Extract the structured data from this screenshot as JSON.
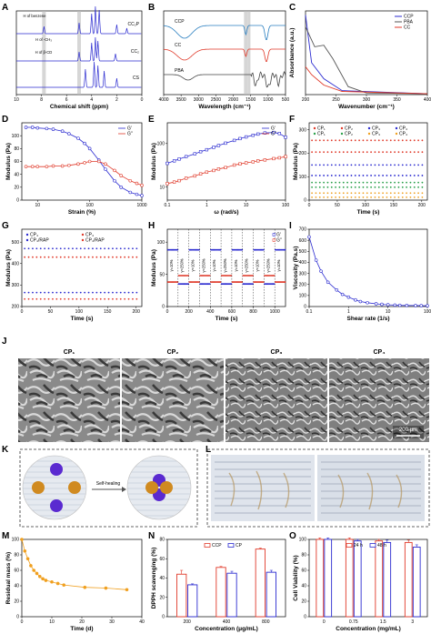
{
  "panels": [
    {
      "id": "A",
      "type": "line",
      "xlabel": "Chemical shift (ppm)",
      "ylabel": "",
      "xlim": [
        10,
        0
      ],
      "xticks": [
        10,
        8,
        6,
        4,
        2,
        0
      ],
      "series": [
        {
          "name": "CC₂P",
          "color": "#2b2bd0"
        },
        {
          "name": "CC₂",
          "color": "#2b2bd0"
        },
        {
          "name": "CS",
          "color": "#2b2bd0"
        }
      ],
      "annotations": [
        "H of benzene",
        "H of -CH₃",
        "H of β-CD"
      ]
    },
    {
      "id": "B",
      "type": "line",
      "xlabel": "Wavelength (cm⁻¹)",
      "ylabel": "",
      "xlim": [
        4000,
        500
      ],
      "xticks": [
        4000,
        3500,
        3000,
        2500,
        2000,
        1500,
        1000,
        500
      ],
      "series": [
        {
          "name": "CCP",
          "color": "#2a7fc0"
        },
        {
          "name": "CC",
          "color": "#e03a2a"
        },
        {
          "name": "PBA",
          "color": "#444444"
        }
      ]
    },
    {
      "id": "C",
      "type": "line",
      "xlabel": "Wavenumber (cm⁻¹)",
      "ylabel": "Absorbance (a.u.)",
      "xlim": [
        200,
        400
      ],
      "xticks": [
        200,
        250,
        300,
        350,
        400
      ],
      "series": [
        {
          "name": "CCP",
          "color": "#2b2bd0"
        },
        {
          "name": "PBA",
          "color": "#555555"
        },
        {
          "name": "CC",
          "color": "#e03a2a"
        }
      ]
    },
    {
      "id": "D",
      "type": "line",
      "xlabel": "Strain (%)",
      "ylabel": "Modulus (Pa)",
      "xscale": "log",
      "xlim": [
        5,
        1000
      ],
      "ylim": [
        0,
        120
      ],
      "xtick_labels": [
        "10",
        "100",
        "1000"
      ],
      "ytick_labels": [
        "0",
        "20",
        "40",
        "60",
        "80",
        "100"
      ],
      "series": [
        {
          "name": "G'",
          "color": "#2b2bd0",
          "x": [
            6,
            8,
            10,
            15,
            20,
            30,
            40,
            60,
            80,
            100,
            150,
            200,
            300,
            400,
            600,
            800,
            1000
          ],
          "y": [
            113,
            113,
            112,
            111,
            110,
            107,
            103,
            96,
            88,
            80,
            62,
            48,
            30,
            20,
            12,
            9,
            7
          ]
        },
        {
          "name": "G\"",
          "color": "#e03a2a",
          "x": [
            6,
            8,
            10,
            15,
            20,
            30,
            40,
            60,
            80,
            100,
            150,
            200,
            300,
            400,
            600,
            800,
            1000
          ],
          "y": [
            52,
            52,
            52,
            52,
            53,
            53,
            54,
            56,
            58,
            60,
            60,
            56,
            46,
            38,
            30,
            26,
            23
          ]
        }
      ]
    },
    {
      "id": "E",
      "type": "line",
      "xlabel": "ω (rad/s)",
      "ylabel": "Modulus (Pa)",
      "xscale": "log",
      "yscale": "log",
      "xlim": [
        0.1,
        100
      ],
      "ylim": [
        5,
        300
      ],
      "xtick_labels": [
        "0.1",
        "1",
        "10",
        "100"
      ],
      "ytick_labels": [
        "10",
        "100"
      ],
      "series": [
        {
          "name": "G'",
          "color": "#2b2bd0",
          "x": [
            0.1,
            0.15,
            0.2,
            0.3,
            0.5,
            0.7,
            1,
            1.5,
            2,
            3,
            5,
            7,
            10,
            15,
            20,
            30,
            50,
            70,
            100
          ],
          "y": [
            35,
            40,
            44,
            50,
            58,
            65,
            72,
            82,
            90,
            102,
            118,
            130,
            142,
            155,
            165,
            175,
            180,
            170,
            140
          ]
        },
        {
          "name": "G\"",
          "color": "#e03a2a",
          "x": [
            0.1,
            0.15,
            0.2,
            0.3,
            0.5,
            0.7,
            1,
            1.5,
            2,
            3,
            5,
            7,
            10,
            15,
            20,
            30,
            50,
            70,
            100
          ],
          "y": [
            12,
            13,
            14,
            16,
            18,
            20,
            22,
            24,
            26,
            28,
            32,
            34,
            36,
            38,
            40,
            42,
            45,
            47,
            50
          ]
        }
      ]
    },
    {
      "id": "F",
      "type": "scatter",
      "xlabel": "Time (s)",
      "ylabel": "Modulus (Pa)",
      "xlim": [
        0,
        210
      ],
      "ylim": [
        0,
        330
      ],
      "xtick_labels": [
        "0",
        "50",
        "100",
        "150",
        "200"
      ],
      "ytick_labels": [
        "0",
        "100",
        "200",
        "300"
      ],
      "legend": [
        "CP₁",
        "CP₂",
        "CP₃",
        "CP₄",
        "CP₁",
        "CP₂",
        "CP₃",
        "CP₄"
      ],
      "levels": [
        255,
        205,
        150,
        105,
        75,
        55,
        30,
        12
      ],
      "colors": [
        "#e03a2a",
        "#e03a2a",
        "#2b2bd0",
        "#2b2bd0",
        "#2aa04a",
        "#2aa04a",
        "#f0a020",
        "#f0a020"
      ]
    },
    {
      "id": "G",
      "type": "scatter",
      "xlabel": "Time (s)",
      "ylabel": "Modulus (Pa)",
      "xlim": [
        0,
        210
      ],
      "ylim": [
        200,
        560
      ],
      "xtick_labels": [
        "0",
        "50",
        "100",
        "150",
        "200"
      ],
      "ytick_labels": [
        "200",
        "300",
        "400",
        "500"
      ],
      "legend": [
        "CP₄",
        "CP₄",
        "CP₄/RAP",
        "CP₄/RAP"
      ],
      "levels": [
        470,
        430,
        265,
        235
      ],
      "colors": [
        "#2b2bd0",
        "#e03a2a",
        "#2b2bd0",
        "#e03a2a"
      ]
    },
    {
      "id": "H",
      "type": "line",
      "xlabel": "Time (s)",
      "ylabel": "Modulus (Pa)",
      "xlim": [
        0,
        1100
      ],
      "ylim": [
        0,
        120
      ],
      "xtick_labels": [
        "0",
        "200",
        "400",
        "600",
        "800",
        "1000"
      ],
      "ytick_labels": [
        "0",
        "50",
        "100"
      ],
      "legend": [
        "G'",
        "G\""
      ],
      "strain_labels": [
        "γ=10%",
        "γ=250%"
      ]
    },
    {
      "id": "I",
      "type": "line",
      "xlabel": "Shear rate (1/s)",
      "ylabel": "Viscosity (Pa.s)",
      "xscale": "log",
      "xlim": [
        0.1,
        100
      ],
      "ylim": [
        0,
        700
      ],
      "xtick_labels": [
        "0.1",
        "1",
        "10",
        "100"
      ],
      "ytick_labels": [
        "0",
        "100",
        "200",
        "300",
        "400",
        "500",
        "600",
        "700"
      ],
      "series": [
        {
          "name": "Viscosity",
          "color": "#2b2bd0",
          "x": [
            0.1,
            0.15,
            0.2,
            0.3,
            0.5,
            0.7,
            1,
            1.5,
            2,
            3,
            5,
            7,
            10,
            15,
            20,
            30,
            50,
            70,
            100
          ],
          "y": [
            630,
            420,
            320,
            220,
            150,
            110,
            85,
            60,
            45,
            35,
            25,
            20,
            16,
            13,
            11,
            10,
            9,
            8,
            7
          ]
        }
      ]
    },
    {
      "id": "M",
      "type": "line",
      "xlabel": "Time (d)",
      "ylabel": "Residual mass (%)",
      "xlim": [
        0,
        40
      ],
      "ylim": [
        0,
        100
      ],
      "xtick_labels": [
        "0",
        "10",
        "20",
        "30",
        "40"
      ],
      "ytick_labels": [
        "0",
        "20",
        "40",
        "60",
        "80",
        "100"
      ],
      "series": [
        {
          "name": "Residual mass",
          "color": "#f0a020",
          "x": [
            0,
            1,
            2,
            3,
            4,
            5,
            6,
            7,
            8,
            10,
            12,
            14,
            21,
            28,
            35
          ],
          "y": [
            100,
            85,
            75,
            66,
            60,
            56,
            52,
            49,
            47,
            45,
            43,
            41,
            38,
            37,
            35
          ]
        }
      ]
    },
    {
      "id": "N",
      "type": "bar",
      "xlabel": "Concentration (μg/mL)",
      "ylabel": "DPPH scavenging (%)",
      "ylim": [
        0,
        80
      ],
      "categories": [
        "200",
        "400",
        "800"
      ],
      "ytick_labels": [
        "0",
        "20",
        "40",
        "60",
        "80"
      ],
      "series": [
        {
          "name": "CCP",
          "color": "#e03a2a",
          "values": [
            44,
            51,
            70
          ],
          "err": [
            4,
            1,
            1
          ]
        },
        {
          "name": "CP",
          "color": "#2b2bd0",
          "values": [
            33,
            45,
            46
          ],
          "err": [
            1,
            2,
            2
          ]
        }
      ]
    },
    {
      "id": "O",
      "type": "bar",
      "xlabel": "Concentration (mg/mL)",
      "ylabel": "Cell Viability (%)",
      "ylim": [
        0,
        100
      ],
      "categories": [
        "0",
        "0.75",
        "1.5",
        "3"
      ],
      "ytick_labels": [
        "0",
        "20",
        "40",
        "60",
        "80",
        "100"
      ],
      "series": [
        {
          "name": "24 h",
          "color": "#e03a2a",
          "values": [
            100,
            100,
            98,
            96
          ],
          "err": [
            2,
            2,
            2,
            3
          ]
        },
        {
          "name": "48 h",
          "color": "#2b2bd0",
          "values": [
            100,
            98,
            96,
            90
          ],
          "err": [
            2,
            2,
            3,
            3
          ]
        }
      ]
    }
  ],
  "sem": {
    "labels": [
      "CP₁",
      "CP₂",
      "CP₃",
      "CP₄"
    ],
    "scale": "200 μm"
  },
  "photoK": {
    "arrow_label": "Self-healing"
  },
  "photoL": {}
}
